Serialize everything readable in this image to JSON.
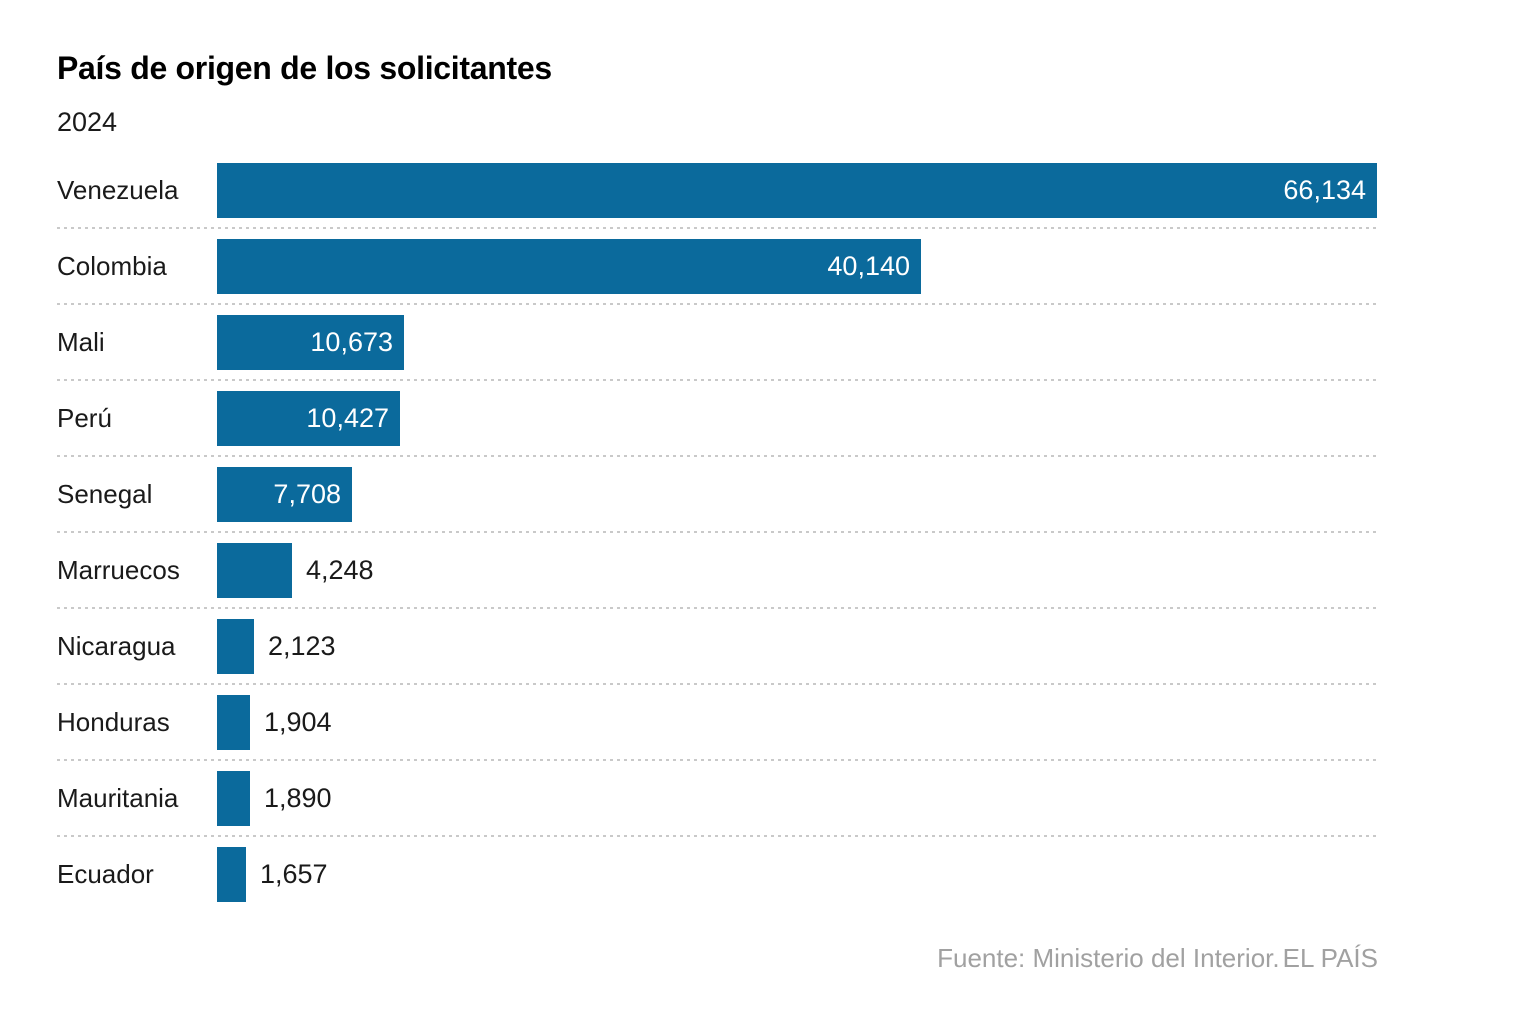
{
  "header": {
    "title": "País de origen de los solicitantes",
    "subtitle": "2024"
  },
  "chart_data": {
    "type": "bar",
    "orientation": "horizontal",
    "title": "País de origen de los solicitantes",
    "subtitle": "2024",
    "categories": [
      "Venezuela",
      "Colombia",
      "Mali",
      "Perú",
      "Senegal",
      "Marruecos",
      "Nicaragua",
      "Honduras",
      "Mauritania",
      "Ecuador"
    ],
    "values": [
      66134,
      40140,
      10673,
      10427,
      7708,
      4248,
      2123,
      1904,
      1890,
      1657
    ],
    "value_labels": [
      "66,134",
      "40,140",
      "10,673",
      "10,427",
      "7,708",
      "4,248",
      "2,123",
      "1,904",
      "1,890",
      "1,657"
    ],
    "xlim": [
      0,
      66134
    ],
    "bar_color": "#0b6a9c",
    "grid": "dotted row separators",
    "legend": "none",
    "axes": "none (direct value labels)"
  },
  "footer": {
    "source": "Fuente: Ministerio del Interior.",
    "brand": "EL PAÍS"
  }
}
